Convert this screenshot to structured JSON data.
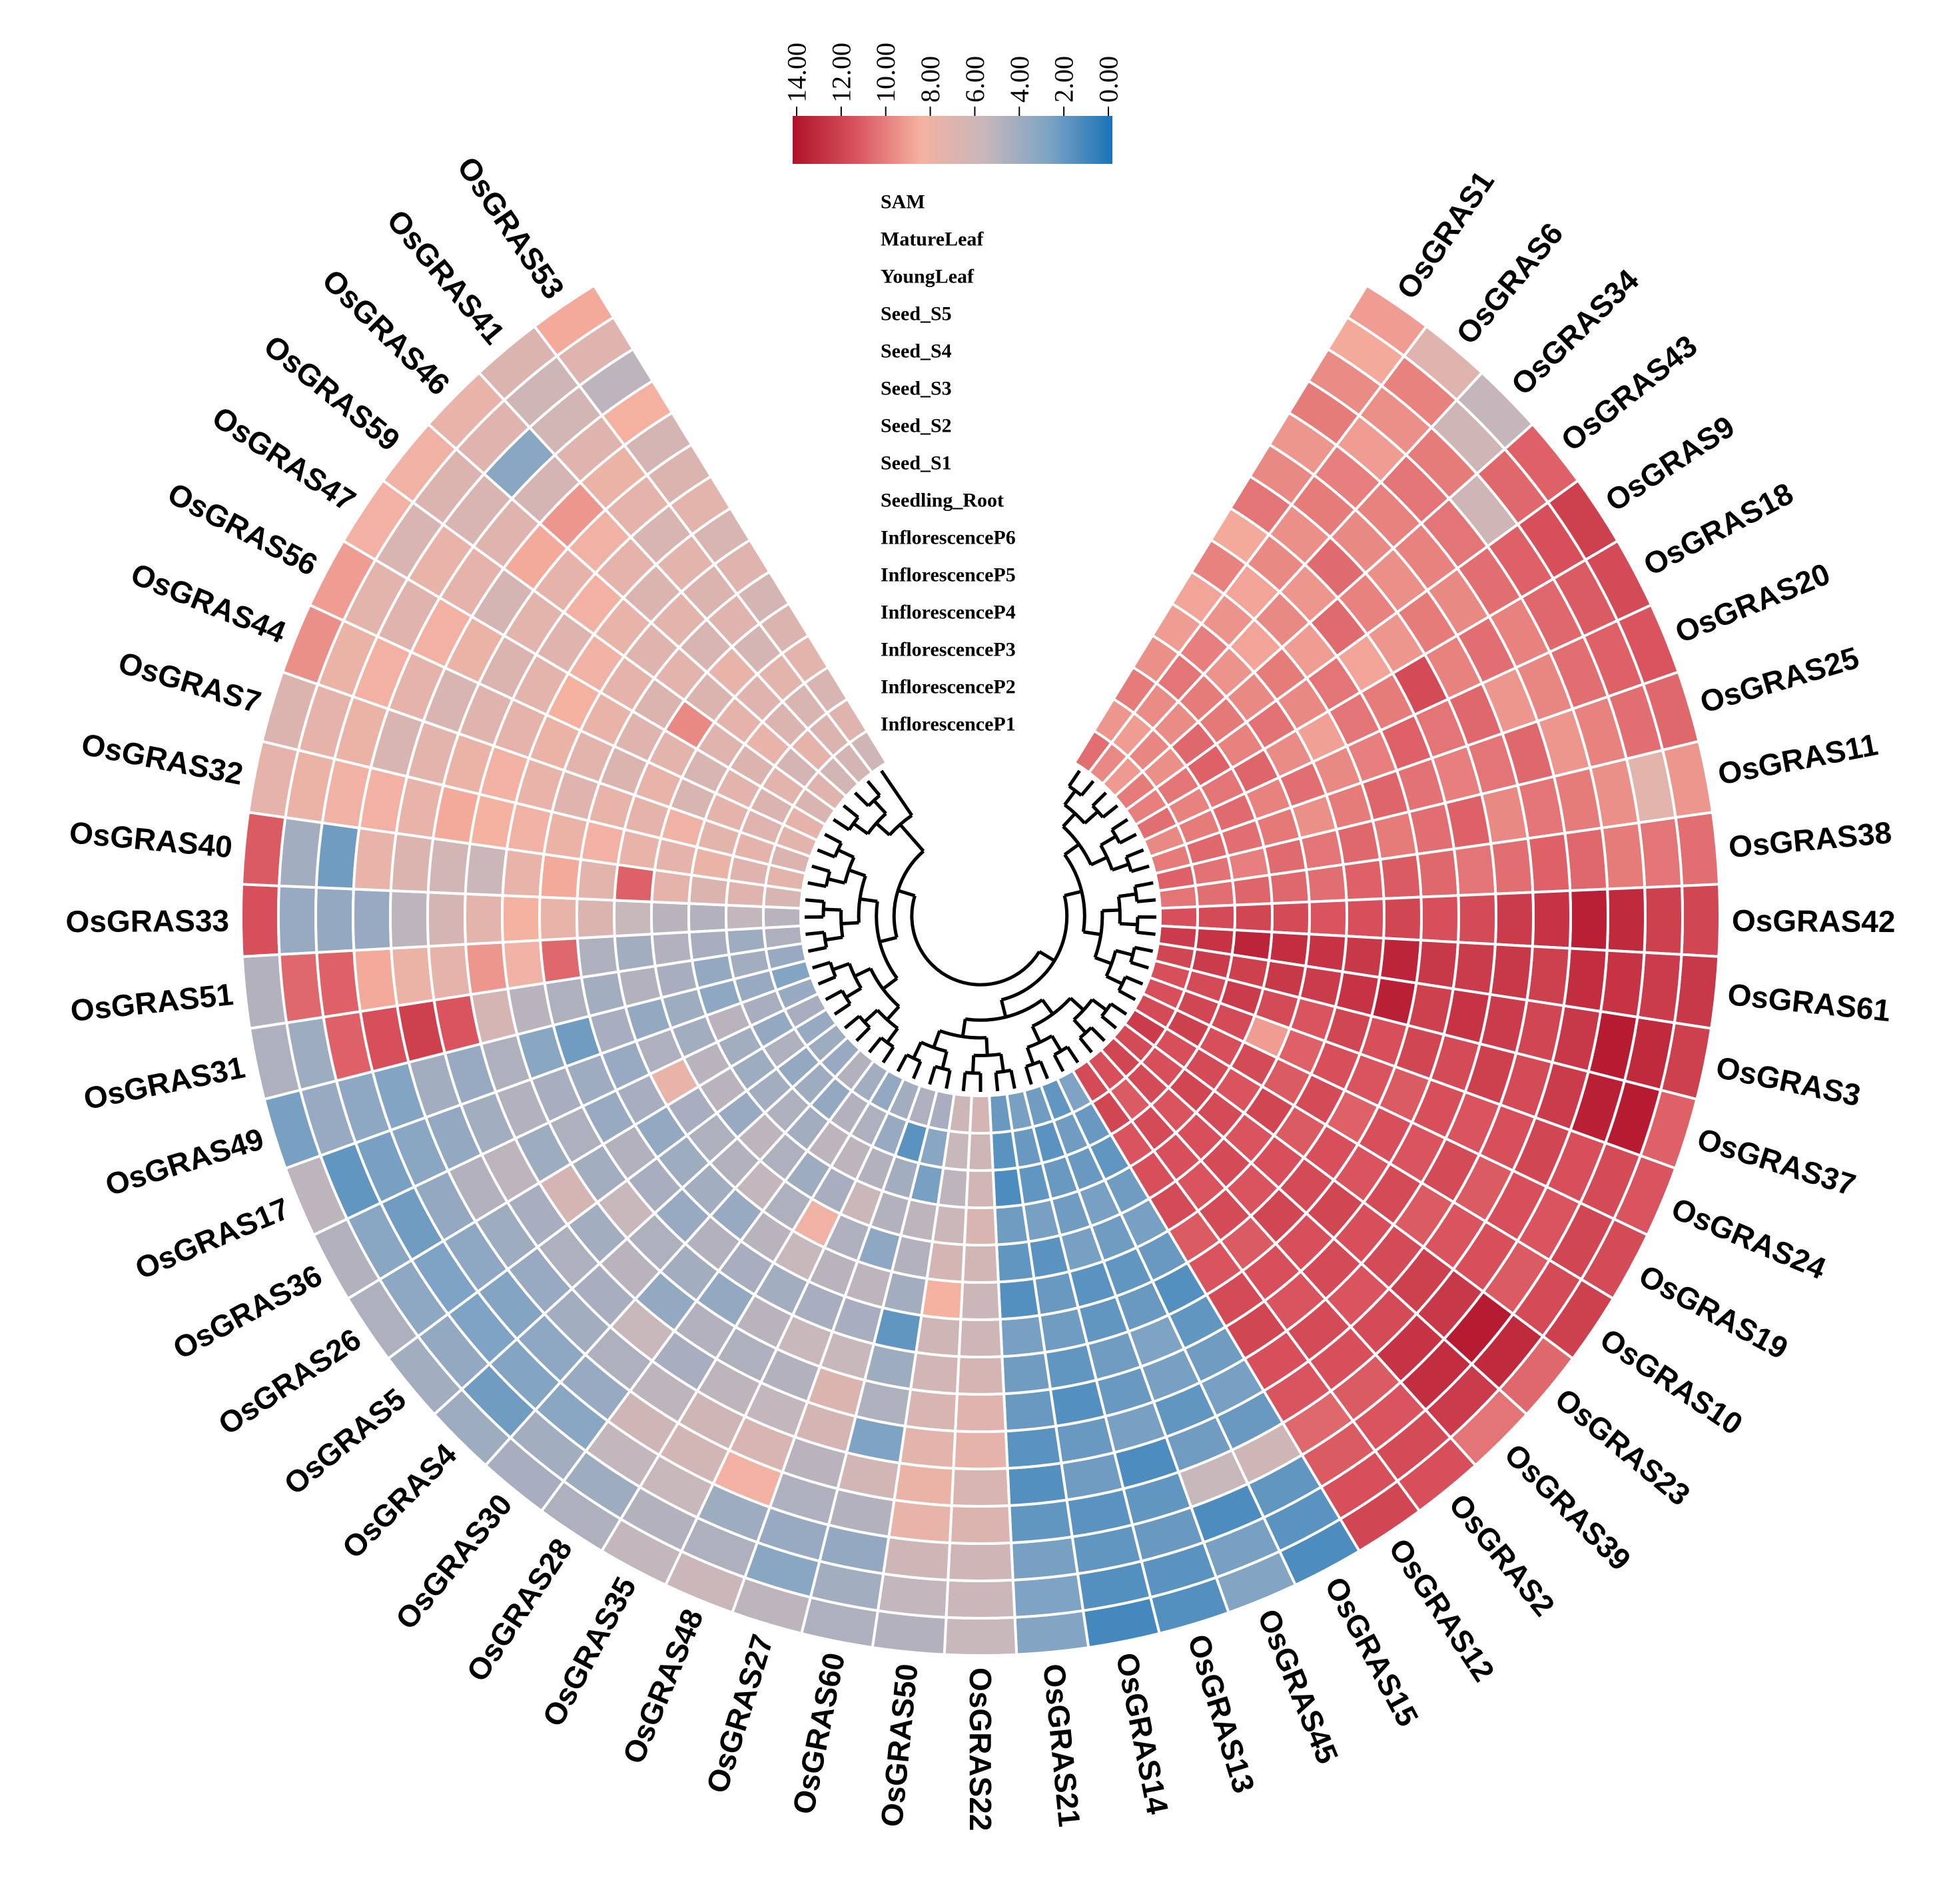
{
  "chart_data": {
    "type": "heatmap",
    "layout": "circular",
    "title": "",
    "colorbar": {
      "ticks": [
        "14.00",
        "12.00",
        "10.00",
        "8.00",
        "6.00",
        "4.00",
        "2.00",
        "0.00"
      ],
      "min": 0,
      "max": 14,
      "colors": [
        "#b0122a",
        "#d9545e",
        "#f5b1a0",
        "#c8b7bb",
        "#7ea3c4",
        "#1a74b8"
      ],
      "placement": "top-center"
    },
    "tracks": [
      "SAM",
      "MatureLeaf",
      "YoungLeaf",
      "Seed_S5",
      "Seed_S4",
      "Seed_S3",
      "Seed_S2",
      "Seed_S1",
      "Seedling_Root",
      "InflorescenceP6",
      "InflorescenceP5",
      "InflorescenceP4",
      "InflorescenceP3",
      "InflorescenceP2",
      "InflorescenceP1"
    ],
    "genes": [
      "OsGRAS1",
      "OsGRAS6",
      "OsGRAS34",
      "OsGRAS43",
      "OsGRAS9",
      "OsGRAS18",
      "OsGRAS20",
      "OsGRAS25",
      "OsGRAS11",
      "OsGRAS38",
      "OsGRAS42",
      "OsGRAS61",
      "OsGRAS3",
      "OsGRAS37",
      "OsGRAS24",
      "OsGRAS19",
      "OsGRAS10",
      "OsGRAS23",
      "OsGRAS39",
      "OsGRAS2",
      "OsGRAS12",
      "OsGRAS15",
      "OsGRAS45",
      "OsGRAS13",
      "OsGRAS14",
      "OsGRAS21",
      "OsGRAS22",
      "OsGRAS50",
      "OsGRAS60",
      "OsGRAS27",
      "OsGRAS48",
      "OsGRAS35",
      "OsGRAS28",
      "OsGRAS30",
      "OsGRAS4",
      "OsGRAS5",
      "OsGRAS26",
      "OsGRAS36",
      "OsGRAS17",
      "OsGRAS49",
      "OsGRAS31",
      "OsGRAS51",
      "OsGRAS33",
      "OsGRAS40",
      "OsGRAS32",
      "OsGRAS7",
      "OsGRAS44",
      "OsGRAS56",
      "OsGRAS47",
      "OsGRAS59",
      "OsGRAS46",
      "OsGRAS41",
      "OsGRAS53"
    ],
    "values": [
      [
        9.0,
        8.6,
        9.5,
        10.0,
        9.2,
        9.6,
        10.2,
        8.6,
        9.8,
        8.8,
        9.0,
        9.4,
        10.0,
        9.2,
        10.4
      ],
      [
        7.0,
        9.8,
        9.4,
        9.0,
        9.9,
        10.0,
        9.4,
        9.6,
        8.8,
        9.3,
        9.9,
        10.2,
        9.5,
        9.0,
        9.6
      ],
      [
        5.5,
        6.0,
        10.0,
        10.2,
        9.8,
        9.6,
        10.5,
        9.2,
        9.6,
        8.8,
        9.3,
        10.0,
        9.5,
        9.7,
        9.1
      ],
      [
        10.8,
        10.6,
        6.0,
        10.2,
        9.8,
        9.4,
        9.8,
        10.5,
        9.0,
        10.0,
        9.6,
        10.1,
        10.6,
        9.4,
        10.0
      ],
      [
        12.0,
        11.4,
        10.8,
        10.4,
        9.6,
        10.0,
        9.2,
        8.8,
        10.2,
        9.6,
        10.3,
        9.8,
        10.8,
        10.2,
        9.9
      ],
      [
        11.6,
        11.0,
        10.6,
        9.8,
        10.4,
        9.8,
        11.6,
        10.0,
        10.2,
        8.9,
        9.5,
        10.7,
        10.2,
        9.8,
        10.4
      ],
      [
        11.2,
        10.8,
        10.4,
        9.7,
        9.2,
        10.6,
        10.2,
        10.8,
        9.9,
        9.6,
        10.4,
        9.8,
        10.5,
        10.0,
        9.6
      ],
      [
        10.6,
        10.4,
        9.8,
        9.2,
        10.6,
        10.2,
        9.9,
        10.3,
        10.7,
        10.0,
        9.4,
        10.1,
        10.4,
        10.6,
        10.0
      ],
      [
        9.2,
        7.2,
        9.4,
        10.0,
        10.2,
        9.6,
        10.8,
        10.4,
        10.0,
        10.6,
        10.2,
        10.5,
        9.9,
        10.3,
        10.8
      ],
      [
        10.4,
        10.2,
        10.0,
        10.6,
        10.8,
        10.4,
        10.2,
        10.6,
        11.0,
        10.8,
        10.4,
        10.6,
        10.7,
        10.4,
        10.2
      ],
      [
        11.8,
        12.0,
        13.0,
        13.4,
        12.6,
        12.2,
        11.6,
        11.4,
        11.8,
        11.4,
        11.2,
        11.6,
        11.8,
        11.6,
        11.4
      ],
      [
        12.4,
        12.2,
        12.6,
        12.8,
        12.0,
        12.4,
        12.2,
        12.4,
        13.2,
        12.4,
        12.6,
        12.8,
        13.2,
        12.6,
        12.2
      ],
      [
        12.0,
        13.0,
        13.6,
        12.4,
        11.8,
        12.2,
        12.6,
        12.0,
        13.4,
        12.6,
        12.2,
        12.4,
        12.0,
        12.2,
        11.8
      ],
      [
        10.8,
        13.6,
        13.4,
        12.2,
        11.6,
        12.0,
        11.6,
        11.8,
        11.4,
        11.8,
        11.2,
        11.6,
        12.2,
        11.6,
        11.4
      ],
      [
        11.2,
        11.6,
        11.4,
        11.8,
        11.4,
        11.2,
        11.4,
        11.0,
        11.2,
        11.4,
        10.8,
        9.0,
        11.6,
        11.8,
        11.4
      ],
      [
        11.6,
        11.8,
        11.2,
        11.4,
        11.0,
        11.6,
        11.2,
        11.4,
        10.8,
        11.6,
        11.0,
        11.6,
        11.4,
        12.0,
        11.6
      ],
      [
        12.0,
        11.6,
        11.0,
        11.4,
        11.2,
        11.0,
        11.6,
        11.2,
        11.4,
        11.0,
        11.8,
        11.2,
        11.6,
        11.4,
        12.2
      ],
      [
        10.6,
        13.0,
        13.6,
        12.4,
        12.0,
        11.6,
        11.4,
        11.8,
        11.6,
        11.4,
        11.2,
        11.6,
        11.8,
        11.4,
        11.6
      ],
      [
        10.2,
        12.2,
        12.8,
        12.6,
        11.6,
        11.2,
        11.6,
        11.4,
        11.8,
        11.2,
        11.6,
        11.4,
        11.2,
        11.6,
        11.8
      ],
      [
        11.4,
        11.6,
        11.2,
        11.0,
        11.4,
        11.6,
        11.2,
        11.4,
        11.0,
        11.6,
        11.2,
        11.4,
        11.6,
        11.0,
        11.4
      ],
      [
        11.8,
        11.4,
        11.0,
        10.6,
        11.2,
        11.4,
        11.8,
        11.6,
        11.2,
        11.0,
        11.6,
        11.4,
        11.2,
        11.8,
        11.6
      ],
      [
        1.4,
        1.8,
        2.0,
        6.0,
        2.2,
        2.6,
        2.4,
        2.0,
        1.6,
        2.2,
        2.6,
        2.4,
        2.0,
        2.2,
        2.8
      ],
      [
        3.0,
        2.6,
        1.4,
        5.6,
        2.4,
        2.0,
        2.6,
        2.8,
        2.2,
        2.0,
        2.4,
        2.6,
        2.2,
        2.4,
        2.0
      ],
      [
        1.6,
        1.8,
        2.2,
        2.0,
        1.4,
        2.6,
        2.2,
        2.4,
        2.0,
        1.8,
        2.6,
        2.4,
        2.2,
        1.8,
        2.4
      ],
      [
        1.2,
        1.6,
        2.0,
        1.8,
        2.4,
        2.2,
        1.6,
        2.0,
        2.4,
        2.2,
        1.8,
        2.6,
        2.0,
        2.2,
        2.6
      ],
      [
        3.0,
        2.8,
        2.6,
        2.0,
        1.6,
        1.8,
        2.2,
        2.4,
        2.6,
        1.6,
        2.0,
        2.4,
        1.4,
        1.8,
        2.2
      ],
      [
        5.6,
        5.8,
        6.0,
        6.8,
        6.6,
        7.4,
        7.0,
        6.4,
        6.0,
        5.8,
        6.2,
        6.6,
        6.2,
        6.0,
        6.4
      ],
      [
        4.8,
        5.4,
        6.0,
        7.6,
        7.8,
        7.2,
        6.6,
        6.2,
        6.0,
        8.4,
        6.4,
        5.8,
        5.2,
        5.6,
        6.0
      ],
      [
        4.6,
        4.2,
        3.6,
        4.8,
        6.2,
        2.8,
        4.6,
        4.0,
        2.0,
        4.2,
        4.8,
        5.2,
        2.6,
        3.2,
        4.4
      ],
      [
        5.2,
        3.2,
        3.8,
        4.6,
        5.0,
        6.4,
        6.8,
        5.6,
        4.4,
        5.2,
        3.4,
        4.8,
        4.2,
        1.8,
        4.6
      ],
      [
        5.8,
        4.6,
        4.0,
        8.2,
        6.6,
        5.4,
        4.8,
        5.6,
        4.4,
        5.0,
        4.6,
        5.8,
        4.8,
        3.8,
        4.2
      ],
      [
        5.4,
        4.8,
        5.6,
        6.2,
        6.0,
        5.2,
        4.6,
        5.0,
        4.2,
        5.6,
        8.0,
        4.4,
        5.2,
        4.6,
        3.6
      ],
      [
        4.6,
        4.0,
        5.4,
        6.0,
        5.2,
        4.4,
        4.8,
        3.6,
        4.4,
        5.0,
        4.6,
        4.0,
        5.2,
        4.8,
        4.2
      ],
      [
        4.4,
        4.2,
        3.2,
        3.8,
        4.6,
        5.6,
        3.6,
        4.2,
        4.8,
        3.8,
        5.4,
        4.6,
        4.2,
        3.6,
        4.8
      ],
      [
        4.0,
        2.4,
        3.0,
        3.4,
        4.2,
        4.4,
        5.0,
        4.6,
        3.8,
        4.2,
        4.8,
        5.2,
        4.6,
        4.0,
        3.8
      ],
      [
        4.2,
        3.6,
        2.8,
        3.0,
        3.8,
        4.6,
        4.2,
        5.6,
        4.4,
        4.0,
        4.6,
        3.8,
        4.2,
        3.6,
        4.0
      ],
      [
        4.6,
        3.4,
        2.8,
        3.4,
        4.0,
        4.4,
        6.4,
        4.2,
        4.8,
        3.6,
        4.4,
        5.0,
        4.0,
        4.6,
        3.8
      ],
      [
        4.8,
        3.2,
        2.4,
        3.6,
        4.8,
        5.2,
        4.0,
        4.6,
        3.8,
        4.4,
        7.6,
        5.0,
        4.2,
        3.6,
        4.4
      ],
      [
        5.2,
        2.0,
        2.6,
        3.2,
        3.6,
        4.2,
        4.8,
        4.4,
        4.0,
        3.8,
        4.6,
        4.2,
        5.0,
        4.4,
        3.8
      ],
      [
        2.6,
        3.8,
        3.4,
        3.0,
        4.2,
        3.8,
        4.6,
        3.2,
        2.4,
        4.4,
        3.6,
        4.0,
        3.4,
        3.8,
        3.0
      ],
      [
        4.6,
        4.0,
        10.8,
        11.4,
        12.0,
        11.2,
        6.4,
        5.0,
        4.6,
        4.2,
        4.8,
        4.4,
        3.6,
        4.2,
        3.8
      ],
      [
        4.8,
        10.6,
        10.8,
        8.6,
        7.8,
        7.4,
        9.2,
        8.0,
        10.6,
        4.6,
        4.2,
        4.8,
        4.4,
        4.0,
        4.6
      ],
      [
        11.4,
        3.8,
        3.6,
        3.8,
        5.2,
        6.4,
        7.2,
        8.4,
        7.6,
        6.8,
        5.6,
        5.0,
        4.8,
        5.4,
        5.0
      ],
      [
        11.0,
        4.2,
        2.4,
        7.6,
        6.8,
        6.2,
        5.8,
        7.6,
        8.6,
        7.2,
        10.8,
        7.4,
        6.8,
        7.0,
        6.6
      ],
      [
        7.4,
        7.8,
        8.0,
        8.2,
        7.6,
        8.6,
        8.4,
        8.0,
        7.8,
        8.2,
        7.6,
        7.4,
        7.8,
        7.0,
        7.2
      ],
      [
        6.8,
        7.4,
        7.8,
        6.6,
        7.2,
        7.8,
        8.2,
        7.6,
        7.0,
        7.6,
        7.4,
        8.0,
        7.2,
        7.4,
        6.8
      ],
      [
        9.4,
        7.8,
        8.2,
        7.4,
        6.6,
        7.0,
        7.4,
        7.8,
        7.2,
        6.8,
        7.6,
        6.6,
        7.4,
        7.0,
        7.2
      ],
      [
        9.0,
        7.2,
        7.0,
        8.2,
        7.8,
        6.8,
        7.2,
        8.4,
        7.6,
        7.0,
        7.2,
        6.6,
        7.2,
        6.8,
        7.4
      ],
      [
        8.2,
        6.6,
        7.6,
        7.4,
        6.4,
        7.2,
        7.0,
        8.0,
        7.4,
        6.8,
        9.6,
        7.0,
        6.8,
        7.2,
        6.6
      ],
      [
        8.0,
        6.8,
        6.6,
        7.0,
        8.6,
        7.4,
        8.2,
        7.6,
        7.0,
        7.2,
        6.8,
        7.4,
        7.6,
        6.4,
        7.0
      ],
      [
        7.6,
        7.0,
        3.2,
        6.4,
        9.2,
        8.0,
        7.4,
        6.8,
        7.2,
        6.6,
        7.6,
        7.0,
        6.8,
        7.4,
        6.2
      ],
      [
        6.8,
        6.0,
        6.2,
        7.0,
        7.8,
        7.4,
        6.6,
        7.2,
        6.8,
        7.0,
        6.4,
        7.2,
        6.6,
        6.8,
        6.4
      ],
      [
        8.6,
        7.0,
        5.2,
        8.4,
        6.4,
        6.8,
        7.2,
        6.6,
        7.0,
        6.4,
        6.8,
        7.2,
        6.6,
        7.0,
        6.0
      ]
    ]
  }
}
